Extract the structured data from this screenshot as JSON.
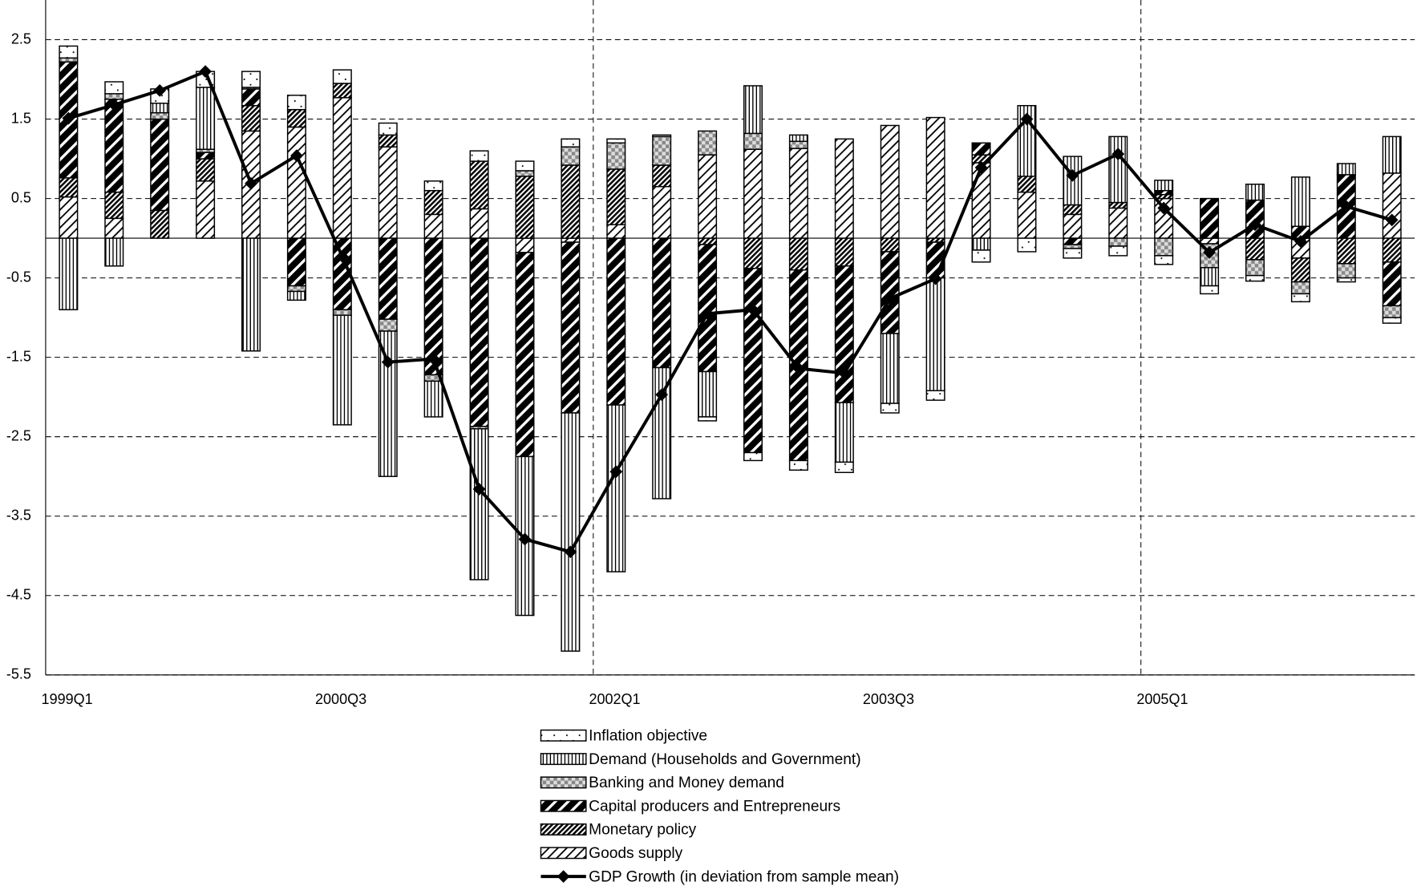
{
  "chart_data": {
    "type": "bar",
    "stacked": true,
    "categories": [
      "1999Q1",
      null,
      null,
      null,
      null,
      null,
      "2000Q3",
      null,
      null,
      null,
      null,
      null,
      "2002Q1",
      null,
      null,
      null,
      null,
      null,
      "2003Q3",
      null,
      null,
      null,
      null,
      null,
      "2005Q1",
      null,
      null,
      null,
      null,
      null
    ],
    "ylim": [
      -5.5,
      3.0
    ],
    "yticks": [
      2.5,
      1.5,
      0.5,
      -0.5,
      -1.5,
      -2.5,
      -3.5,
      -4.5,
      -5.5
    ],
    "grid": true,
    "legend": "bottom",
    "series": [
      {
        "name": "Inflation objective",
        "color": "#000000",
        "pattern": "dots",
        "values": [
          0.15,
          0.15,
          0.18,
          0.2,
          0.2,
          0.18,
          0.17,
          0.15,
          0.12,
          0.13,
          0.12,
          0.1,
          0.05,
          0.02,
          -0.05,
          -0.1,
          -0.12,
          -0.13,
          -0.12,
          -0.12,
          -0.15,
          -0.17,
          -0.12,
          -0.12,
          -0.11,
          -0.1,
          -0.07,
          -0.1,
          -0.05,
          -0.07
        ]
      },
      {
        "name": "Demand (Households and Government)",
        "color": "#000000",
        "pattern": "vertical",
        "values": [
          -0.9,
          -0.35,
          0.12,
          0.78,
          -1.42,
          -0.11,
          -1.38,
          -1.83,
          -0.45,
          -1.9,
          -2.0,
          -3.0,
          -2.1,
          -1.65,
          -0.57,
          0.6,
          0.08,
          -0.75,
          -0.88,
          -1.42,
          -0.15,
          0.89,
          0.61,
          0.83,
          0.13,
          -0.23,
          0.2,
          0.62,
          0.14,
          0.46
        ]
      },
      {
        "name": "Banking and Money demand",
        "color": "#000000",
        "pattern": "checker",
        "values": [
          0.05,
          0.07,
          0.08,
          0.04,
          0.02,
          -0.07,
          -0.07,
          -0.15,
          -0.08,
          -0.03,
          0.07,
          0.23,
          0.33,
          0.36,
          0.3,
          0.2,
          0.09,
          0,
          0,
          0,
          0,
          0,
          -0.05,
          -0.1,
          -0.22,
          -0.3,
          -0.2,
          -0.15,
          -0.18,
          -0.15
        ]
      },
      {
        "name": "Capital producers and Entrepreneurs",
        "color": "#000000",
        "pattern": "wide-diagonal",
        "values": [
          1.46,
          1.17,
          1.15,
          0.08,
          0.21,
          -0.6,
          -0.9,
          -1.02,
          -1.72,
          -2.37,
          -2.57,
          -2.15,
          -2.1,
          -1.63,
          -1.6,
          -2.32,
          -2.4,
          -1.72,
          -1.03,
          -0.45,
          0.15,
          0,
          -0.08,
          0,
          0.05,
          0.5,
          0.48,
          0.15,
          0.8,
          -0.55
        ]
      },
      {
        "name": "Monetary policy",
        "color": "#000000",
        "pattern": "dense-diagonal",
        "values": [
          0.24,
          0.33,
          0.35,
          0.28,
          0.32,
          0.22,
          0.18,
          0.15,
          0.3,
          0.6,
          0.78,
          0.92,
          0.7,
          0.27,
          -0.08,
          -0.38,
          -0.4,
          -0.35,
          -0.17,
          -0.05,
          0.1,
          0.2,
          0.12,
          0.07,
          0.05,
          0,
          -0.27,
          -0.3,
          -0.32,
          -0.3
        ]
      },
      {
        "name": "Goods supply",
        "color": "#000000",
        "pattern": "light-diagonal",
        "values": [
          0.52,
          0.25,
          0,
          0.72,
          1.35,
          1.4,
          1.77,
          1.15,
          0.3,
          0.37,
          -0.18,
          -0.05,
          0.17,
          0.65,
          1.05,
          1.12,
          1.13,
          1.25,
          1.42,
          1.52,
          0.95,
          0.58,
          0.3,
          0.38,
          0.5,
          -0.07,
          0,
          -0.25,
          0,
          0.82
        ]
      },
      {
        "name": "GDP Growth (in deviation from sample mean)",
        "type": "line",
        "color": "#000000",
        "values": [
          1.51,
          1.68,
          1.86,
          2.1,
          0.69,
          1.04,
          -0.23,
          -1.56,
          -1.52,
          -3.16,
          -3.79,
          -3.95,
          -2.94,
          -1.97,
          -0.95,
          -0.9,
          -1.64,
          -1.7,
          -0.76,
          -0.51,
          0.89,
          1.5,
          0.79,
          1.06,
          0.38,
          -0.18,
          0.17,
          -0.04,
          0.4,
          0.23
        ]
      }
    ]
  }
}
